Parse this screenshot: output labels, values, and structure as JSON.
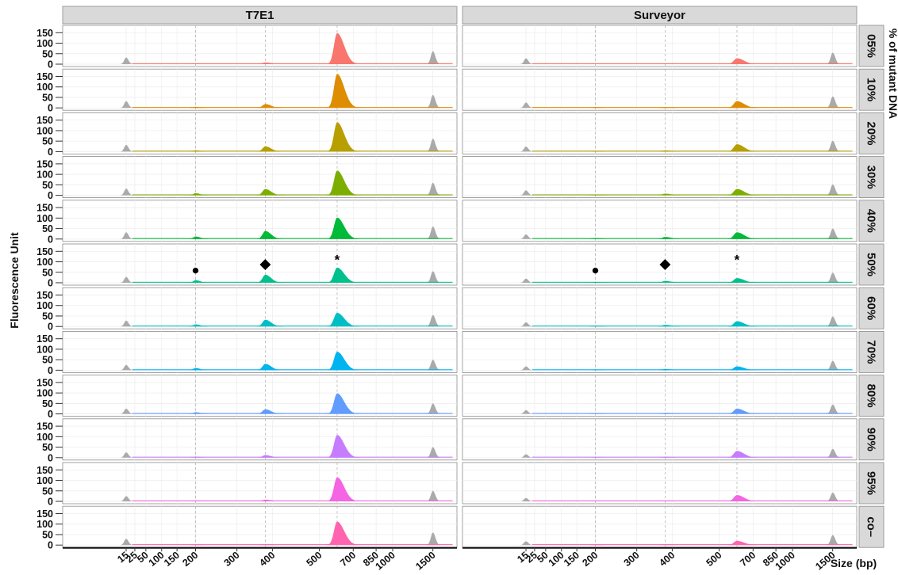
{
  "chart_data": {
    "type": "area",
    "facet_columns": [
      "T7E1",
      "Surveyor"
    ],
    "facet_rows": [
      "05%",
      "10%",
      "20%",
      "30%",
      "40%",
      "50%",
      "60%",
      "70%",
      "80%",
      "90%",
      "95%",
      "co–"
    ],
    "row_strip_title": "% of mutant DNA",
    "ylabel": "Fluorescence Unit",
    "xlabel": "Size (bp)",
    "ylim": [
      0,
      170
    ],
    "yticks": [
      0,
      50,
      100,
      150
    ],
    "x_ticks": [
      "15",
      "25",
      "50",
      "100",
      "150",
      "200",
      "300",
      "400",
      "500",
      "700",
      "850",
      "1000",
      "1500"
    ],
    "x_tick_positions": [
      15,
      25,
      50,
      100,
      150,
      200,
      300,
      400,
      500,
      700,
      850,
      1000,
      1500
    ],
    "x_range": [
      -40,
      2100
    ],
    "ladder_peaks_bp": [
      15,
      1500
    ],
    "ladder_color": "#aaaaaa",
    "reference_lines_bp": [
      200,
      380,
      605
    ],
    "series_colors": [
      "#F8766D",
      "#DE8C00",
      "#B79F00",
      "#7CAE00",
      "#00BA38",
      "#00C08B",
      "#00BFC4",
      "#00B4F0",
      "#619CFF",
      "#C77CFF",
      "#F564E3",
      "#FF64B0"
    ],
    "markers": {
      "row": "50%",
      "symbols": [
        {
          "symbol": "●",
          "bp": 200,
          "y": 62
        },
        {
          "symbol": "◆",
          "bp": 380,
          "y": 92
        },
        {
          "symbol": "*",
          "bp": 605,
          "y": 112
        }
      ]
    },
    "series": [
      {
        "name": "05%",
        "T7E1": {
          "p200": 3,
          "p380": 8,
          "p605": 148,
          "ladder15": 32,
          "ladder1500": 62
        },
        "Surveyor": {
          "p200": 2,
          "p380": 2,
          "p605": 28,
          "ladder15": 28,
          "ladder1500": 55
        }
      },
      {
        "name": "10%",
        "T7E1": {
          "p200": 5,
          "p380": 18,
          "p605": 162,
          "ladder15": 32,
          "ladder1500": 62
        },
        "Surveyor": {
          "p200": 2,
          "p380": 3,
          "p605": 32,
          "ladder15": 26,
          "ladder1500": 55
        }
      },
      {
        "name": "20%",
        "T7E1": {
          "p200": 6,
          "p380": 25,
          "p605": 140,
          "ladder15": 32,
          "ladder1500": 62
        },
        "Surveyor": {
          "p200": 3,
          "p380": 6,
          "p605": 35,
          "ladder15": 24,
          "ladder1500": 52
        }
      },
      {
        "name": "30%",
        "T7E1": {
          "p200": 10,
          "p380": 30,
          "p605": 118,
          "ladder15": 32,
          "ladder1500": 60
        },
        "Surveyor": {
          "p200": 4,
          "p380": 8,
          "p605": 30,
          "ladder15": 24,
          "ladder1500": 52
        }
      },
      {
        "name": "40%",
        "T7E1": {
          "p200": 12,
          "p380": 38,
          "p605": 102,
          "ladder15": 32,
          "ladder1500": 60
        },
        "Surveyor": {
          "p200": 5,
          "p380": 10,
          "p605": 32,
          "ladder15": 22,
          "ladder1500": 50
        }
      },
      {
        "name": "50%",
        "T7E1": {
          "p200": 12,
          "p380": 38,
          "p605": 72,
          "ladder15": 28,
          "ladder1500": 55
        },
        "Surveyor": {
          "p200": 4,
          "p380": 9,
          "p605": 22,
          "ladder15": 20,
          "ladder1500": 48
        }
      },
      {
        "name": "60%",
        "T7E1": {
          "p200": 10,
          "p380": 32,
          "p605": 65,
          "ladder15": 28,
          "ladder1500": 55
        },
        "Surveyor": {
          "p200": 4,
          "p380": 8,
          "p605": 25,
          "ladder15": 20,
          "ladder1500": 48
        }
      },
      {
        "name": "70%",
        "T7E1": {
          "p200": 10,
          "p380": 30,
          "p605": 88,
          "ladder15": 25,
          "ladder1500": 50
        },
        "Surveyor": {
          "p200": 3,
          "p380": 6,
          "p605": 18,
          "ladder15": 18,
          "ladder1500": 45
        }
      },
      {
        "name": "80%",
        "T7E1": {
          "p200": 8,
          "p380": 22,
          "p605": 98,
          "ladder15": 25,
          "ladder1500": 50
        },
        "Surveyor": {
          "p200": 3,
          "p380": 5,
          "p605": 25,
          "ladder15": 18,
          "ladder1500": 45
        }
      },
      {
        "name": "90%",
        "T7E1": {
          "p200": 5,
          "p380": 12,
          "p605": 108,
          "ladder15": 25,
          "ladder1500": 50
        },
        "Surveyor": {
          "p200": 2,
          "p380": 4,
          "p605": 32,
          "ladder15": 16,
          "ladder1500": 42
        }
      },
      {
        "name": "95%",
        "T7E1": {
          "p200": 4,
          "p380": 8,
          "p605": 115,
          "ladder15": 25,
          "ladder1500": 50
        },
        "Surveyor": {
          "p200": 2,
          "p380": 3,
          "p605": 30,
          "ladder15": 16,
          "ladder1500": 42
        }
      },
      {
        "name": "co–",
        "T7E1": {
          "p200": 2,
          "p380": 3,
          "p605": 112,
          "ladder15": 30,
          "ladder1500": 60
        },
        "Surveyor": {
          "p200": 2,
          "p380": 3,
          "p605": 20,
          "ladder15": 18,
          "ladder1500": 48
        }
      }
    ]
  }
}
